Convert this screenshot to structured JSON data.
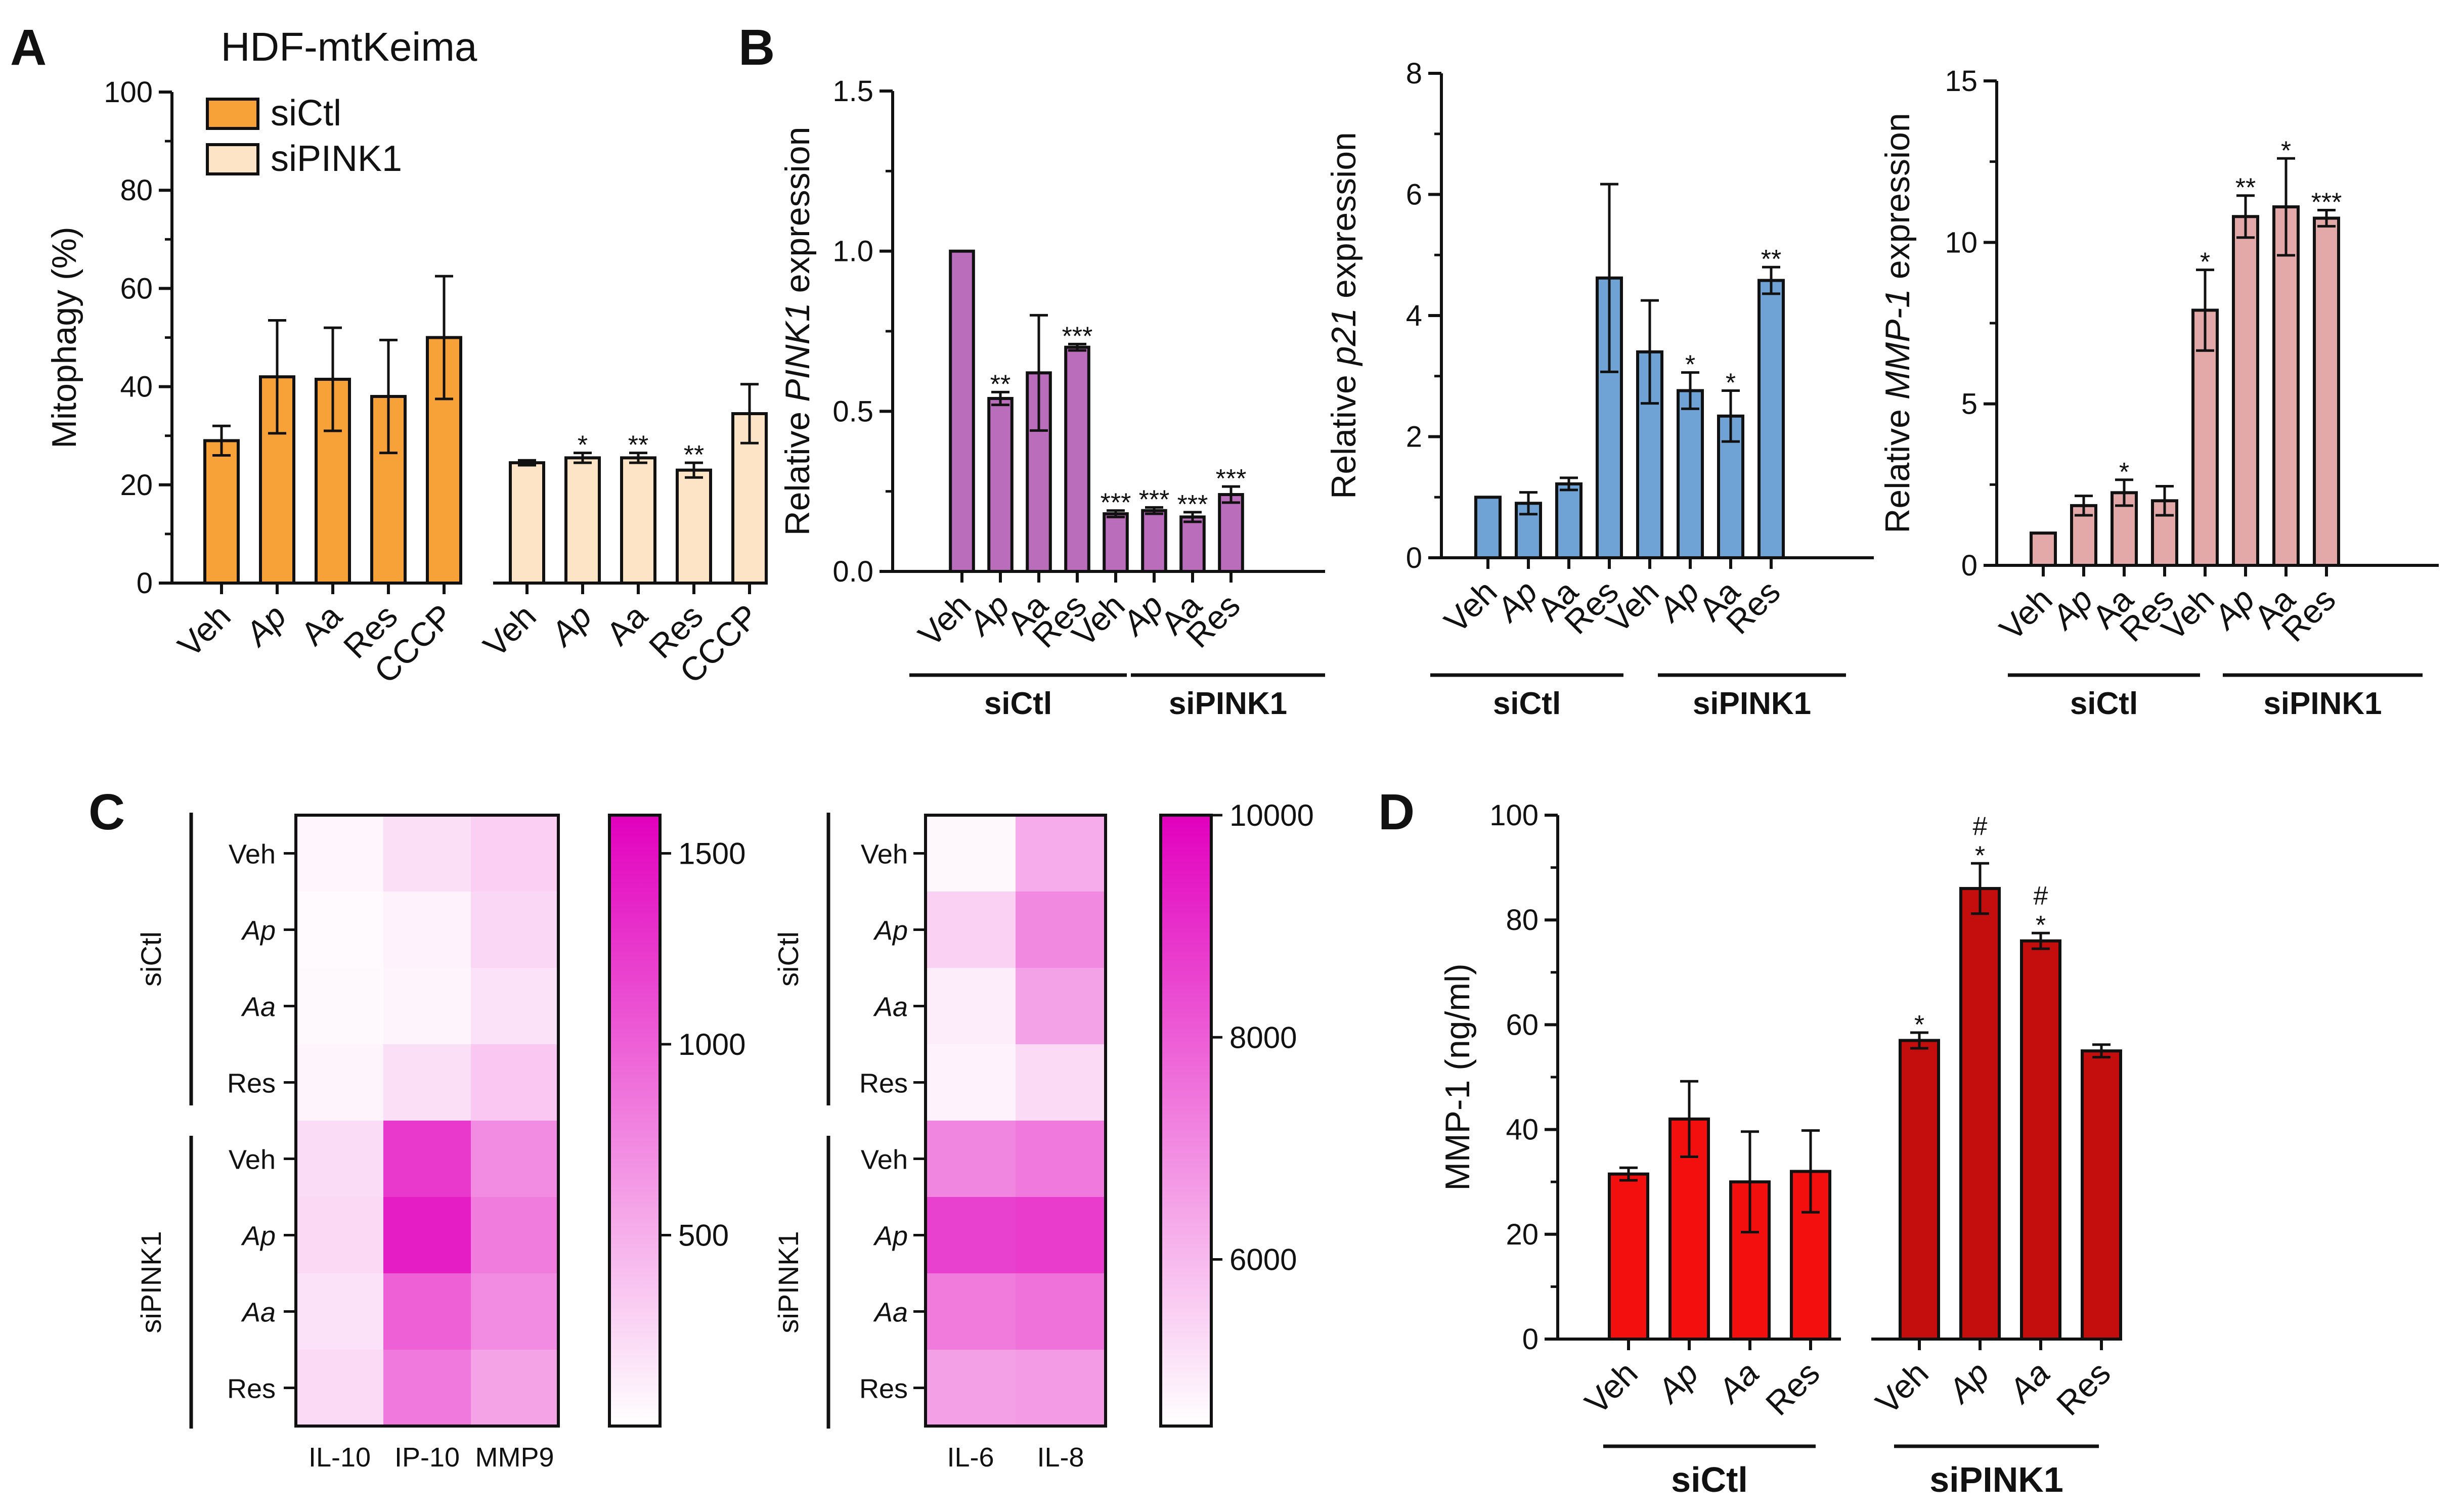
{
  "panels": {
    "A": "A",
    "B": "B",
    "C": "C",
    "D": "D"
  },
  "chart_data": [
    {
      "id": "A",
      "type": "bar",
      "title": "HDF-mtKeima",
      "ylabel": "Mitophagy (%)",
      "ylim": [
        0,
        100
      ],
      "yticks": [
        "0",
        "20",
        "40",
        "60",
        "80",
        "100"
      ],
      "categories": [
        "Veh",
        "Ap",
        "Aa",
        "Res",
        "CCCP"
      ],
      "italic_categories": [
        "Ap"
      ],
      "legend": {
        "position": "top-left",
        "entries": [
          "siCtl",
          "siPINK1"
        ]
      },
      "series": [
        {
          "name": "siCtl",
          "color": "#F7A139",
          "values": [
            29,
            42,
            41.5,
            38,
            50
          ],
          "errors": [
            3,
            11.5,
            10.5,
            11.5,
            12.5
          ],
          "sig": [
            "",
            "",
            "",
            "",
            ""
          ]
        },
        {
          "name": "siPINK1",
          "color": "#FDE4C6",
          "values": [
            24.5,
            25.5,
            25.5,
            23,
            34.5
          ],
          "errors": [
            0.5,
            1,
            1,
            1.5,
            6
          ],
          "sig": [
            "",
            "*",
            "**",
            "**",
            ""
          ]
        }
      ]
    },
    {
      "id": "B1",
      "type": "bar",
      "ylabel_parts": [
        "Relative ",
        "PINK1",
        " expression"
      ],
      "ylim": [
        0,
        1.5
      ],
      "yticks": [
        "0.0",
        "0.5",
        "1.0",
        "1.5"
      ],
      "categories": [
        "Veh",
        "Ap",
        "Aa",
        "Res",
        "Veh",
        "Ap",
        "Aa",
        "Res"
      ],
      "italic_categories": [
        "Ap"
      ],
      "groups": [
        "siCtl",
        "siPINK1"
      ],
      "color": "#B96DBA",
      "values": [
        1.0,
        0.54,
        0.62,
        0.7,
        0.18,
        0.19,
        0.17,
        0.24
      ],
      "errors": [
        0,
        0.02,
        0.18,
        0.01,
        0.01,
        0.01,
        0.015,
        0.025
      ],
      "sig": [
        "",
        "**",
        "",
        "***",
        "***",
        "***",
        "***",
        "***"
      ]
    },
    {
      "id": "B2",
      "type": "bar",
      "ylabel_parts": [
        "Relative ",
        "p21",
        " expression"
      ],
      "ylim": [
        0,
        8
      ],
      "yticks": [
        "0",
        "2",
        "4",
        "6",
        "8"
      ],
      "categories": [
        "Veh",
        "Ap",
        "Aa",
        "Res",
        "Veh",
        "Ap",
        "Aa",
        "Res"
      ],
      "italic_categories": [
        "Ap"
      ],
      "groups": [
        "siCtl",
        "siPINK1"
      ],
      "color": "#6FA3D6",
      "values": [
        1.0,
        0.9,
        1.22,
        4.62,
        3.4,
        2.76,
        2.34,
        4.58
      ],
      "errors": [
        0,
        0.18,
        0.1,
        1.55,
        0.85,
        0.3,
        0.42,
        0.22
      ],
      "sig": [
        "",
        "",
        "",
        "",
        "",
        "*",
        "*",
        "**"
      ]
    },
    {
      "id": "B3",
      "type": "bar",
      "ylabel_parts": [
        "Relative ",
        "MMP-1",
        " expression"
      ],
      "ylim": [
        0,
        15
      ],
      "yticks": [
        "0",
        "5",
        "10",
        "15"
      ],
      "categories": [
        "Veh",
        "Ap",
        "Aa",
        "Res",
        "Veh",
        "Ap",
        "Aa",
        "Res"
      ],
      "italic_categories": [
        "Ap"
      ],
      "groups": [
        "siCtl",
        "siPINK1"
      ],
      "color": "#E3A9A9",
      "values": [
        1.0,
        1.85,
        2.25,
        2.0,
        7.9,
        10.8,
        11.1,
        10.75
      ],
      "errors": [
        0,
        0.3,
        0.4,
        0.45,
        1.25,
        0.65,
        1.5,
        0.25
      ],
      "sig": [
        "",
        "",
        "*",
        "",
        "*",
        "**",
        "*",
        "***"
      ]
    },
    {
      "id": "C1",
      "type": "heatmap",
      "rows": [
        "Veh",
        "Ap",
        "Aa",
        "Res",
        "Veh",
        "Ap",
        "Aa",
        "Res"
      ],
      "italic_rows": [
        "Ap",
        "Aa"
      ],
      "row_groups": [
        "siCtl",
        "siPINK1"
      ],
      "columns": [
        "IL-10",
        "IP-10",
        "MMP9"
      ],
      "values": [
        [
          60,
          200,
          300
        ],
        [
          30,
          80,
          250
        ],
        [
          40,
          70,
          180
        ],
        [
          70,
          200,
          350
        ],
        [
          220,
          1240,
          720
        ],
        [
          240,
          1420,
          820
        ],
        [
          180,
          1000,
          720
        ],
        [
          230,
          840,
          580
        ]
      ],
      "range": [
        0,
        1600
      ],
      "colorbar_ticks": [
        "500",
        "1000",
        "1500"
      ],
      "colorbar_values": [
        500,
        1000,
        1500
      ]
    },
    {
      "id": "C2",
      "type": "heatmap",
      "rows": [
        "Veh",
        "Ap",
        "Aa",
        "Res",
        "Veh",
        "Ap",
        "Aa",
        "Res"
      ],
      "italic_rows": [
        "Ap",
        "Aa"
      ],
      "row_groups": [
        "siCtl",
        "siPINK1"
      ],
      "columns": [
        "IL-6",
        "IL-8"
      ],
      "values": [
        [
          4650,
          6300
        ],
        [
          5500,
          7050
        ],
        [
          4900,
          6500
        ],
        [
          4750,
          5300
        ],
        [
          7100,
          7400
        ],
        [
          8600,
          8700
        ],
        [
          7350,
          7550
        ],
        [
          6550,
          6650
        ]
      ],
      "range": [
        4500,
        10000
      ],
      "colorbar_ticks": [
        "6000",
        "8000",
        "10000"
      ],
      "colorbar_values": [
        6000,
        8000,
        10000
      ]
    },
    {
      "id": "D",
      "type": "bar",
      "ylabel": "MMP-1 (ng/ml)",
      "ylim": [
        0,
        100
      ],
      "yticks": [
        "0",
        "20",
        "40",
        "60",
        "80",
        "100"
      ],
      "categories": [
        "Veh",
        "Ap",
        "Aa",
        "Res",
        "Veh",
        "Ap",
        "Aa",
        "Res"
      ],
      "italic_categories": [
        "Ap",
        "Aa"
      ],
      "groups": [
        "siCtl",
        "siPINK1"
      ],
      "colors": [
        "#F40F0F",
        "#F40F0F",
        "#F40F0F",
        "#F40F0F",
        "#C40E0E",
        "#C40E0E",
        "#C40E0E",
        "#C40E0E"
      ],
      "values": [
        31.5,
        42,
        30,
        32,
        57,
        86,
        76,
        55
      ],
      "errors": [
        1.2,
        7.2,
        9.6,
        7.8,
        1.5,
        4.8,
        1.5,
        1.2
      ],
      "sig": [
        "",
        "",
        "",
        "",
        "*",
        "*",
        "*",
        ""
      ],
      "sig2": [
        "",
        "",
        "",
        "",
        "",
        "#",
        "#",
        ""
      ]
    }
  ]
}
